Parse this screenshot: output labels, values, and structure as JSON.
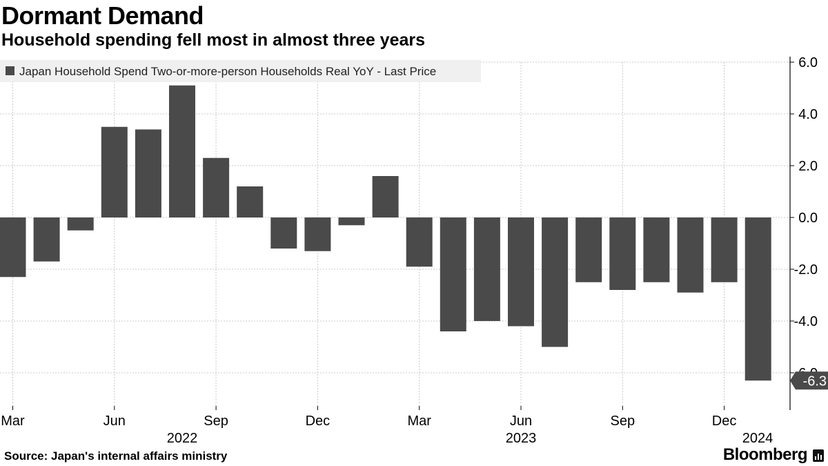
{
  "title": "Dormant Demand",
  "subtitle": "Household spending fell most in almost three years",
  "source": "Source: Japan's internal affairs ministry",
  "brand": "Bloomberg",
  "brand_icon": "bloomberg-terminal-icon",
  "colors": {
    "bar": "#4a4a4a",
    "grid": "#c8c8c8",
    "axis": "#000000",
    "legend_bg": "#f0f0f0"
  },
  "chart_data": {
    "type": "bar",
    "title": "Dormant Demand",
    "subtitle": "Household spending fell most in almost three years",
    "legend": [
      "Japan Household Spend Two-or-more-person Households Real YoY - Last Price"
    ],
    "legend_position": "top-left",
    "categories": [
      "2022-03",
      "2022-04",
      "2022-05",
      "2022-06",
      "2022-07",
      "2022-08",
      "2022-09",
      "2022-10",
      "2022-11",
      "2022-12",
      "2023-01",
      "2023-02",
      "2023-03",
      "2023-04",
      "2023-05",
      "2023-06",
      "2023-07",
      "2023-08",
      "2023-09",
      "2023-10",
      "2023-11",
      "2023-12",
      "2024-01"
    ],
    "values": [
      -2.3,
      -1.7,
      -0.5,
      3.5,
      3.4,
      5.1,
      2.3,
      1.2,
      -1.2,
      -1.3,
      -0.3,
      1.6,
      -1.9,
      -4.4,
      -4.0,
      -4.2,
      -5.0,
      -2.5,
      -2.8,
      -2.5,
      -2.9,
      -2.5,
      -6.3
    ],
    "x_tick_labels": [
      {
        "index": 0,
        "label": "Mar"
      },
      {
        "index": 3,
        "label": "Jun"
      },
      {
        "index": 6,
        "label": "Sep"
      },
      {
        "index": 9,
        "label": "Dec"
      },
      {
        "index": 12,
        "label": "Mar"
      },
      {
        "index": 15,
        "label": "Jun"
      },
      {
        "index": 18,
        "label": "Sep"
      },
      {
        "index": 21,
        "label": "Dec"
      }
    ],
    "year_labels": [
      {
        "index": 5,
        "label": "2022"
      },
      {
        "index": 15,
        "label": "2023"
      },
      {
        "index": 22,
        "label": "2024"
      }
    ],
    "y_ticks": [
      6.0,
      4.0,
      2.0,
      0.0,
      -2.0,
      -4.0,
      -6.0
    ],
    "y_tick_labels": [
      "6.0",
      "4.0",
      "2.0",
      "0.0",
      "-2.0",
      "-4.0",
      "-6.0"
    ],
    "ylim": [
      -6.8,
      6.2
    ],
    "last_value_label": "-6.3",
    "y_axis_position": "right",
    "grid": true,
    "xlabel": "",
    "ylabel": ""
  }
}
